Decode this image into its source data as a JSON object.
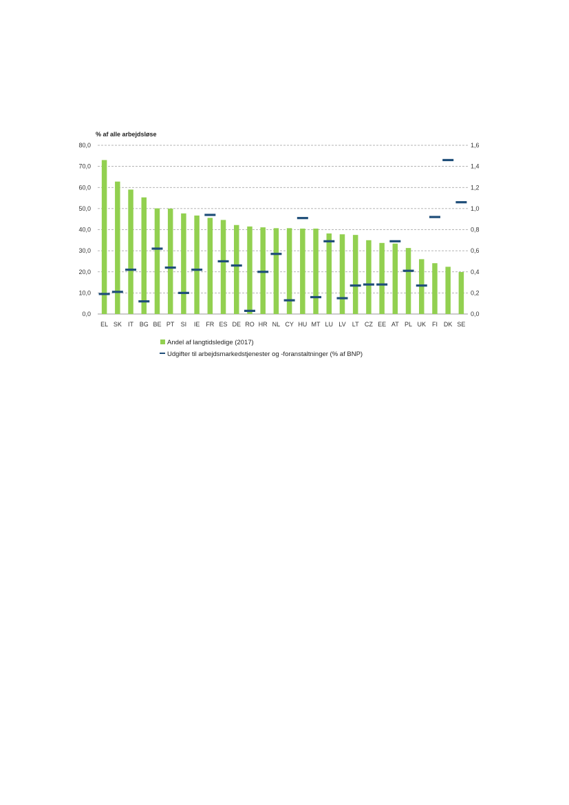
{
  "chart_data": {
    "type": "bar",
    "ylabel": "% af alle arbejdsløse",
    "categories": [
      "EL",
      "SK",
      "IT",
      "BG",
      "BE",
      "PT",
      "SI",
      "IE",
      "FR",
      "ES",
      "DE",
      "RO",
      "HR",
      "NL",
      "CY",
      "HU",
      "MT",
      "LU",
      "LV",
      "LT",
      "CZ",
      "EE",
      "AT",
      "PL",
      "UK",
      "FI",
      "DK",
      "SE"
    ],
    "ylim": [
      0,
      80
    ],
    "y2lim": [
      0,
      1.6
    ],
    "y_ticks": [
      "0,0",
      "10,0",
      "20,0",
      "30,0",
      "40,0",
      "50,0",
      "60,0",
      "70,0",
      "80,0"
    ],
    "y2_ticks": [
      "0,0",
      "0,2",
      "0,4",
      "0,6",
      "0,8",
      "1,0",
      "1,2",
      "1,4",
      "1,6"
    ],
    "grid": true,
    "legend_position": "bottom",
    "series": [
      {
        "name": "Andel af langtidsledige (2017)",
        "type": "bar",
        "axis": "left",
        "color": "#92d050",
        "values": [
          73.0,
          62.8,
          59.0,
          55.3,
          50.1,
          50.0,
          47.7,
          46.7,
          45.6,
          44.6,
          42.2,
          41.5,
          41.1,
          40.7,
          40.7,
          40.5,
          40.5,
          38.2,
          37.8,
          37.5,
          35.0,
          33.7,
          33.4,
          31.3,
          26.0,
          24.1,
          22.4,
          19.9
        ]
      },
      {
        "name": "Udgifter til arbejdsmarkedstjenester og -foranstaltninger (% af BNP)",
        "type": "marker",
        "axis": "right",
        "color": "#1f4e79",
        "values": [
          0.19,
          0.21,
          0.42,
          0.12,
          0.62,
          0.44,
          0.2,
          0.42,
          0.94,
          0.5,
          0.46,
          0.03,
          0.4,
          0.57,
          0.13,
          0.91,
          0.16,
          0.69,
          0.15,
          0.27,
          0.28,
          0.28,
          0.69,
          0.41,
          0.27,
          0.92,
          1.46,
          1.06
        ]
      }
    ]
  }
}
